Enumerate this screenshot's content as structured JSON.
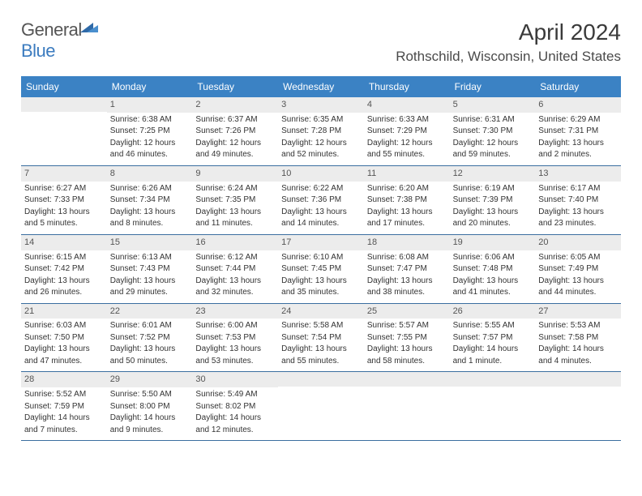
{
  "logo": {
    "word1": "General",
    "word2": "Blue"
  },
  "title": "April 2024",
  "location": "Rothschild, Wisconsin, United States",
  "header_bg": "#3b82c4",
  "header_fg": "#ffffff",
  "daynum_bg": "#ececec",
  "cell_border": "#3b6ea0",
  "text_color": "#333333",
  "title_color": "#3a3a3a",
  "logo_gray": "#555555",
  "logo_blue": "#3b7bbf",
  "day_names": [
    "Sunday",
    "Monday",
    "Tuesday",
    "Wednesday",
    "Thursday",
    "Friday",
    "Saturday"
  ],
  "weeks": [
    [
      null,
      {
        "d": "1",
        "sr": "Sunrise: 6:38 AM",
        "ss": "Sunset: 7:25 PM",
        "dl1": "Daylight: 12 hours",
        "dl2": "and 46 minutes."
      },
      {
        "d": "2",
        "sr": "Sunrise: 6:37 AM",
        "ss": "Sunset: 7:26 PM",
        "dl1": "Daylight: 12 hours",
        "dl2": "and 49 minutes."
      },
      {
        "d": "3",
        "sr": "Sunrise: 6:35 AM",
        "ss": "Sunset: 7:28 PM",
        "dl1": "Daylight: 12 hours",
        "dl2": "and 52 minutes."
      },
      {
        "d": "4",
        "sr": "Sunrise: 6:33 AM",
        "ss": "Sunset: 7:29 PM",
        "dl1": "Daylight: 12 hours",
        "dl2": "and 55 minutes."
      },
      {
        "d": "5",
        "sr": "Sunrise: 6:31 AM",
        "ss": "Sunset: 7:30 PM",
        "dl1": "Daylight: 12 hours",
        "dl2": "and 59 minutes."
      },
      {
        "d": "6",
        "sr": "Sunrise: 6:29 AM",
        "ss": "Sunset: 7:31 PM",
        "dl1": "Daylight: 13 hours",
        "dl2": "and 2 minutes."
      }
    ],
    [
      {
        "d": "7",
        "sr": "Sunrise: 6:27 AM",
        "ss": "Sunset: 7:33 PM",
        "dl1": "Daylight: 13 hours",
        "dl2": "and 5 minutes."
      },
      {
        "d": "8",
        "sr": "Sunrise: 6:26 AM",
        "ss": "Sunset: 7:34 PM",
        "dl1": "Daylight: 13 hours",
        "dl2": "and 8 minutes."
      },
      {
        "d": "9",
        "sr": "Sunrise: 6:24 AM",
        "ss": "Sunset: 7:35 PM",
        "dl1": "Daylight: 13 hours",
        "dl2": "and 11 minutes."
      },
      {
        "d": "10",
        "sr": "Sunrise: 6:22 AM",
        "ss": "Sunset: 7:36 PM",
        "dl1": "Daylight: 13 hours",
        "dl2": "and 14 minutes."
      },
      {
        "d": "11",
        "sr": "Sunrise: 6:20 AM",
        "ss": "Sunset: 7:38 PM",
        "dl1": "Daylight: 13 hours",
        "dl2": "and 17 minutes."
      },
      {
        "d": "12",
        "sr": "Sunrise: 6:19 AM",
        "ss": "Sunset: 7:39 PM",
        "dl1": "Daylight: 13 hours",
        "dl2": "and 20 minutes."
      },
      {
        "d": "13",
        "sr": "Sunrise: 6:17 AM",
        "ss": "Sunset: 7:40 PM",
        "dl1": "Daylight: 13 hours",
        "dl2": "and 23 minutes."
      }
    ],
    [
      {
        "d": "14",
        "sr": "Sunrise: 6:15 AM",
        "ss": "Sunset: 7:42 PM",
        "dl1": "Daylight: 13 hours",
        "dl2": "and 26 minutes."
      },
      {
        "d": "15",
        "sr": "Sunrise: 6:13 AM",
        "ss": "Sunset: 7:43 PM",
        "dl1": "Daylight: 13 hours",
        "dl2": "and 29 minutes."
      },
      {
        "d": "16",
        "sr": "Sunrise: 6:12 AM",
        "ss": "Sunset: 7:44 PM",
        "dl1": "Daylight: 13 hours",
        "dl2": "and 32 minutes."
      },
      {
        "d": "17",
        "sr": "Sunrise: 6:10 AM",
        "ss": "Sunset: 7:45 PM",
        "dl1": "Daylight: 13 hours",
        "dl2": "and 35 minutes."
      },
      {
        "d": "18",
        "sr": "Sunrise: 6:08 AM",
        "ss": "Sunset: 7:47 PM",
        "dl1": "Daylight: 13 hours",
        "dl2": "and 38 minutes."
      },
      {
        "d": "19",
        "sr": "Sunrise: 6:06 AM",
        "ss": "Sunset: 7:48 PM",
        "dl1": "Daylight: 13 hours",
        "dl2": "and 41 minutes."
      },
      {
        "d": "20",
        "sr": "Sunrise: 6:05 AM",
        "ss": "Sunset: 7:49 PM",
        "dl1": "Daylight: 13 hours",
        "dl2": "and 44 minutes."
      }
    ],
    [
      {
        "d": "21",
        "sr": "Sunrise: 6:03 AM",
        "ss": "Sunset: 7:50 PM",
        "dl1": "Daylight: 13 hours",
        "dl2": "and 47 minutes."
      },
      {
        "d": "22",
        "sr": "Sunrise: 6:01 AM",
        "ss": "Sunset: 7:52 PM",
        "dl1": "Daylight: 13 hours",
        "dl2": "and 50 minutes."
      },
      {
        "d": "23",
        "sr": "Sunrise: 6:00 AM",
        "ss": "Sunset: 7:53 PM",
        "dl1": "Daylight: 13 hours",
        "dl2": "and 53 minutes."
      },
      {
        "d": "24",
        "sr": "Sunrise: 5:58 AM",
        "ss": "Sunset: 7:54 PM",
        "dl1": "Daylight: 13 hours",
        "dl2": "and 55 minutes."
      },
      {
        "d": "25",
        "sr": "Sunrise: 5:57 AM",
        "ss": "Sunset: 7:55 PM",
        "dl1": "Daylight: 13 hours",
        "dl2": "and 58 minutes."
      },
      {
        "d": "26",
        "sr": "Sunrise: 5:55 AM",
        "ss": "Sunset: 7:57 PM",
        "dl1": "Daylight: 14 hours",
        "dl2": "and 1 minute."
      },
      {
        "d": "27",
        "sr": "Sunrise: 5:53 AM",
        "ss": "Sunset: 7:58 PM",
        "dl1": "Daylight: 14 hours",
        "dl2": "and 4 minutes."
      }
    ],
    [
      {
        "d": "28",
        "sr": "Sunrise: 5:52 AM",
        "ss": "Sunset: 7:59 PM",
        "dl1": "Daylight: 14 hours",
        "dl2": "and 7 minutes."
      },
      {
        "d": "29",
        "sr": "Sunrise: 5:50 AM",
        "ss": "Sunset: 8:00 PM",
        "dl1": "Daylight: 14 hours",
        "dl2": "and 9 minutes."
      },
      {
        "d": "30",
        "sr": "Sunrise: 5:49 AM",
        "ss": "Sunset: 8:02 PM",
        "dl1": "Daylight: 14 hours",
        "dl2": "and 12 minutes."
      },
      null,
      null,
      null,
      null
    ]
  ]
}
